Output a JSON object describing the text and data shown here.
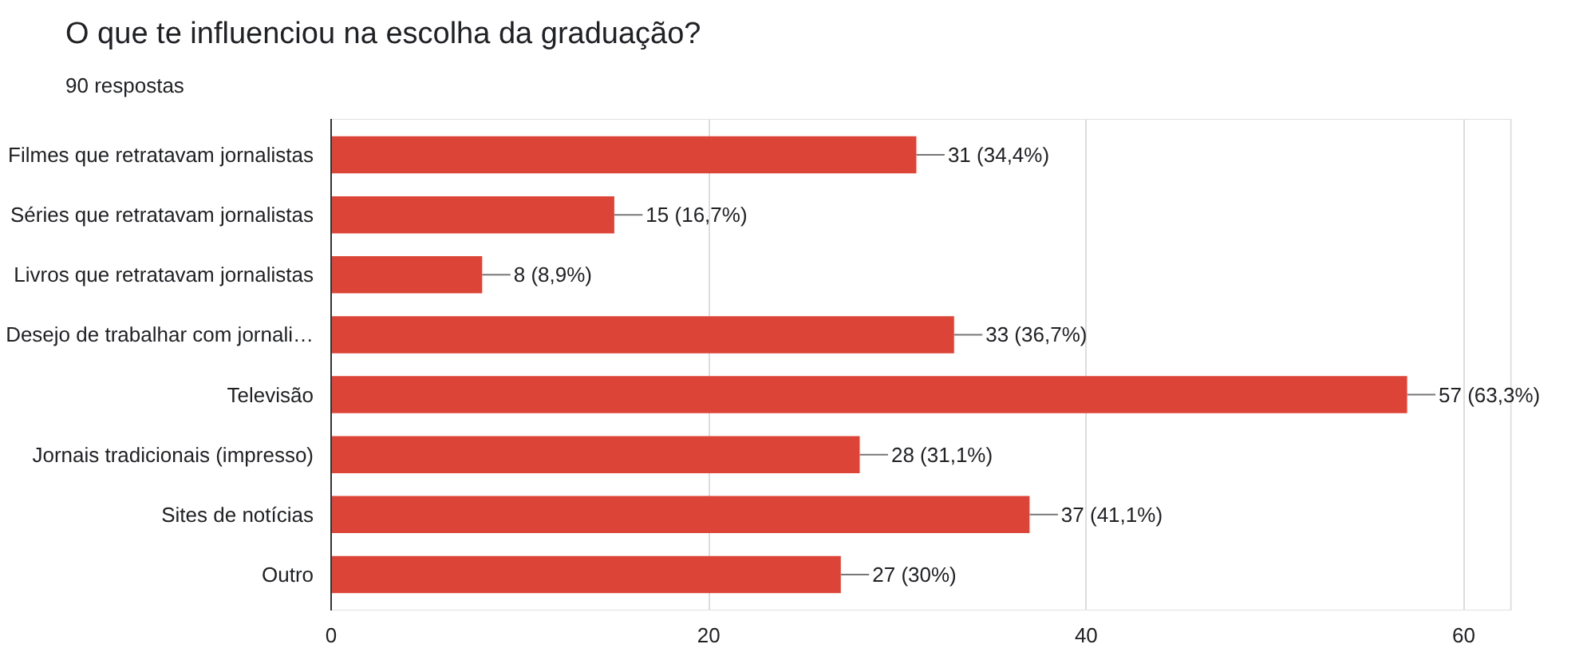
{
  "chart_data": {
    "type": "bar",
    "orientation": "horizontal",
    "title": "O que te influenciou na escolha da graduação?",
    "subtitle": "90 respostas",
    "categories": [
      "Filmes que retratavam jornalistas",
      "Séries que retratavam jornalistas",
      "Livros que retratavam jornalistas",
      "Desejo de trabalhar com jornali…",
      "Televisão",
      "Jornais tradicionais (impresso)",
      "Sites de notícias",
      "Outro"
    ],
    "values": [
      31,
      15,
      8,
      33,
      57,
      28,
      37,
      27
    ],
    "value_labels": [
      "31 (34,4%)",
      "15 (16,7%)",
      "8 (8,9%)",
      "33 (36,7%)",
      "57 (63,3%)",
      "28 (31,1%)",
      "37 (41,1%)",
      "27 (30%)"
    ],
    "color": "#db4437",
    "xlim": [
      0,
      62.5
    ],
    "xticks": [
      0,
      20,
      40,
      60
    ],
    "grid": "x"
  }
}
